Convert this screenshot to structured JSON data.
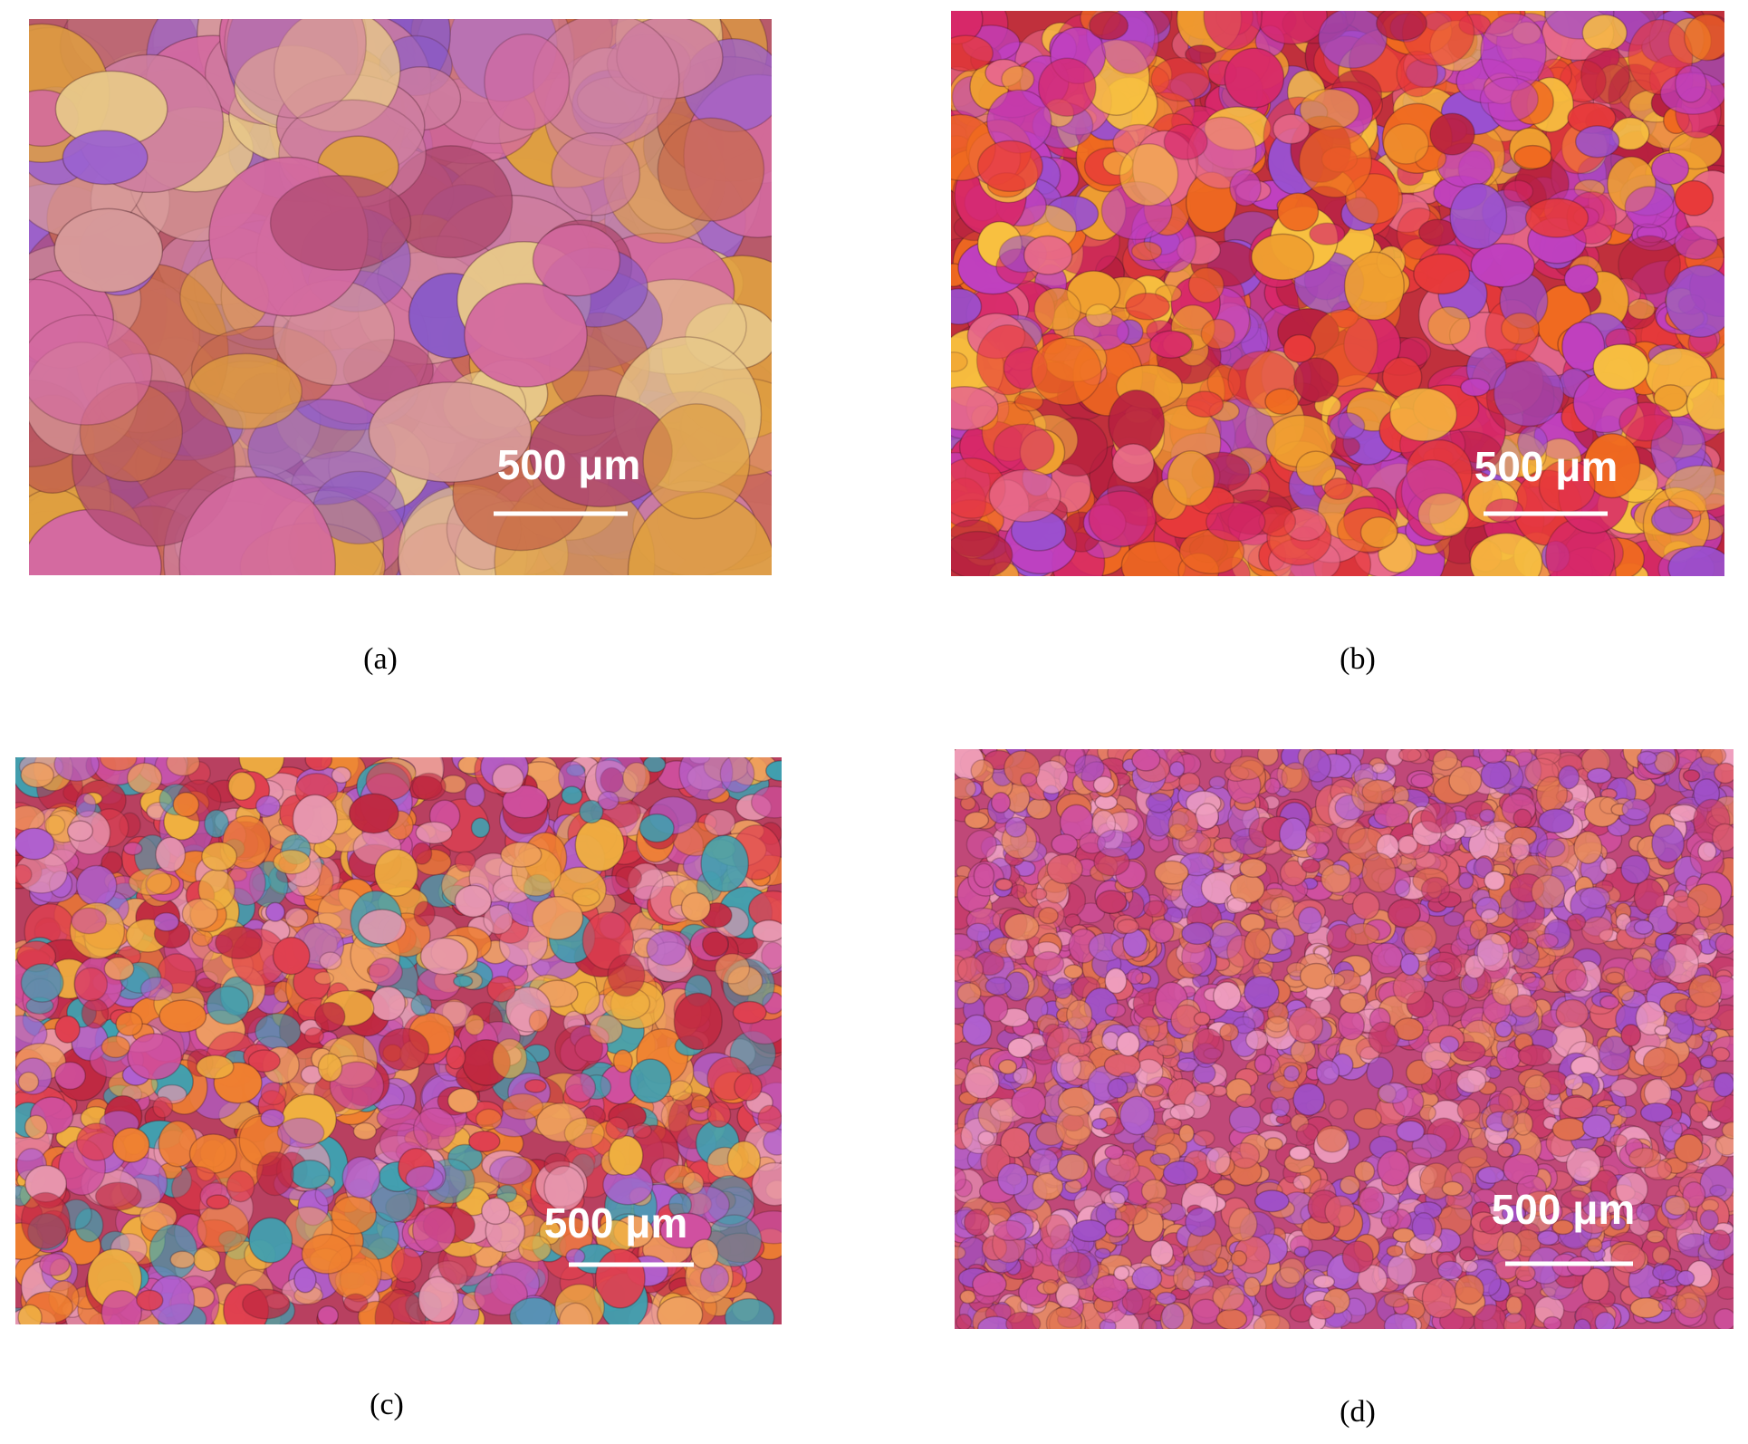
{
  "panels": [
    {
      "label": "(a)",
      "scale_bar": "500 μm"
    },
    {
      "label": "(b)",
      "scale_bar": "500 μm"
    },
    {
      "label": "(c)",
      "scale_bar": "500 μm"
    },
    {
      "label": "(d)",
      "scale_bar": "500 μm"
    }
  ]
}
